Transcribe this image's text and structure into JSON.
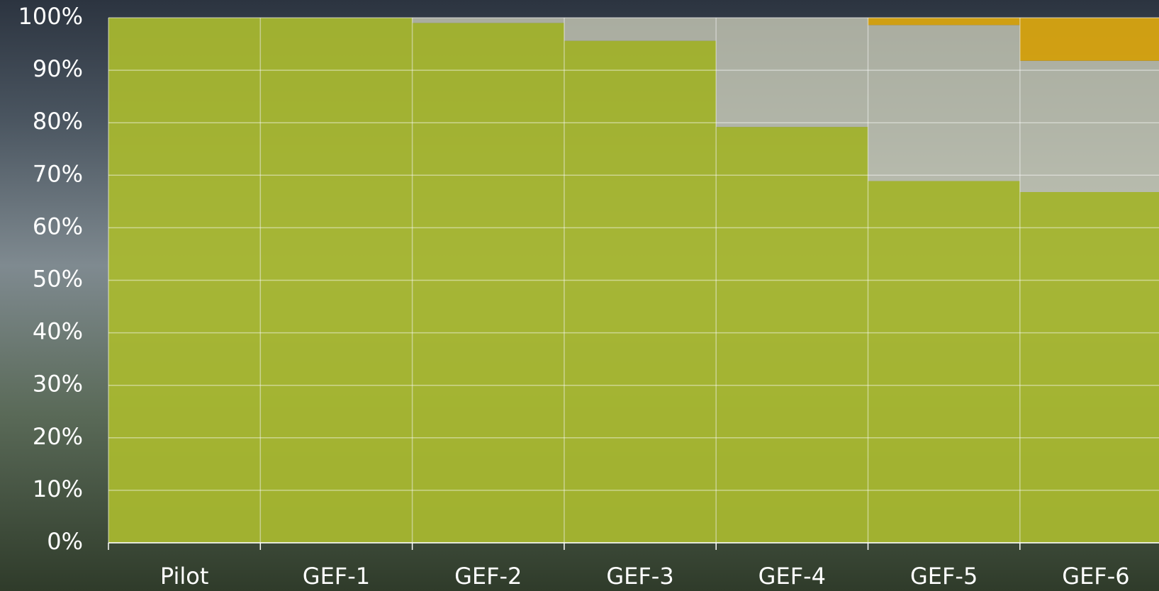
{
  "chart_data": {
    "type": "stacked-bar",
    "categories": [
      "Pilot",
      "GEF-1",
      "GEF-2",
      "GEF-3",
      "GEF-4",
      "GEF-5",
      "GEF-6"
    ],
    "series": [
      {
        "color": "#a9b92f",
        "values": [
          100,
          100,
          99,
          95.6,
          79.2,
          68.9,
          66.8
        ]
      },
      {
        "color": "#d3d4bf",
        "values": [
          0,
          0,
          1,
          4.4,
          20.8,
          29.7,
          25
        ]
      },
      {
        "color": "#dba70f",
        "values": [
          0,
          0,
          0,
          0,
          0,
          1.4,
          8.2
        ]
      }
    ],
    "ylim": [
      0,
      100
    ],
    "yticks": [
      {
        "value": 0,
        "label": "0%"
      },
      {
        "value": 10,
        "label": "10%"
      },
      {
        "value": 20,
        "label": "20%"
      },
      {
        "value": 30,
        "label": "30%"
      },
      {
        "value": 40,
        "label": "40%"
      },
      {
        "value": 50,
        "label": "50%"
      },
      {
        "value": 60,
        "label": "60%"
      },
      {
        "value": 70,
        "label": "70%"
      },
      {
        "value": 80,
        "label": "80%"
      },
      {
        "value": 90,
        "label": "90%"
      },
      {
        "value": 100,
        "label": "100%"
      }
    ],
    "grid": true
  }
}
